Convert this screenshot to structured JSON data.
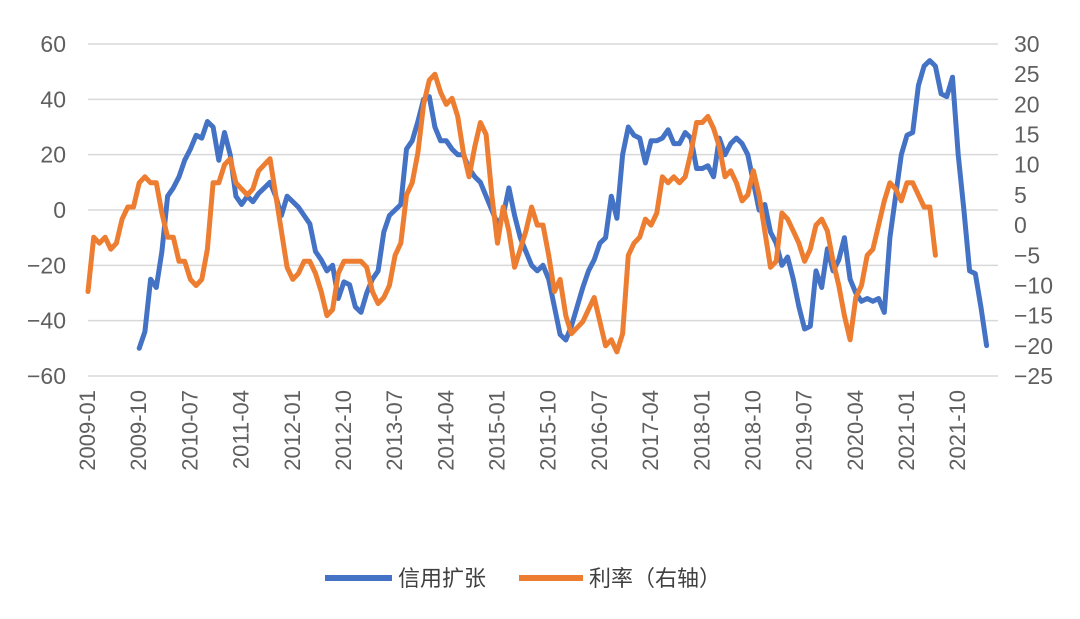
{
  "chart_data": {
    "type": "line",
    "title": "",
    "colors": {
      "credit": "#4472c4",
      "rate": "#ed7d31",
      "grid": "#d9d9d9"
    },
    "x_tick_labels": [
      "2009-01",
      "2009-10",
      "2010-07",
      "2011-04",
      "2012-01",
      "2012-10",
      "2013-07",
      "2014-04",
      "2015-01",
      "2015-10",
      "2016-07",
      "2017-04",
      "2018-01",
      "2018-10",
      "2019-07",
      "2020-04",
      "2021-01",
      "2021-10"
    ],
    "x_tick_positions": [
      0,
      9,
      18,
      27,
      36,
      45,
      54,
      63,
      72,
      81,
      90,
      99,
      108,
      117,
      126,
      135,
      144,
      153
    ],
    "x_range": [
      0,
      160
    ],
    "y_left": {
      "min": -60,
      "max": 60,
      "ticks": [
        60,
        40,
        20,
        0,
        -20,
        -40,
        -60
      ],
      "labels": [
        "60",
        "40",
        "20",
        "0",
        "−20",
        "−40",
        "−60"
      ]
    },
    "y_right": {
      "min": -25,
      "max": 30,
      "ticks": [
        30,
        25,
        20,
        15,
        10,
        5,
        0,
        -5,
        -10,
        -15,
        -20,
        -25
      ],
      "labels": [
        "30",
        "25",
        "20",
        "15",
        "10",
        "5",
        "0",
        "−5",
        "−10",
        "−15",
        "−20",
        "−25"
      ]
    },
    "series": [
      {
        "name": "信用扩张",
        "axis": "left",
        "x_start": 9,
        "values": [
          -50,
          -44,
          -25,
          -28,
          -15,
          5,
          8,
          12,
          18,
          22,
          27,
          26,
          32,
          30,
          18,
          28,
          20,
          5,
          2,
          5,
          3,
          6,
          8,
          10,
          5,
          -2,
          5,
          3,
          1,
          -2,
          -5,
          -15,
          -18,
          -22,
          -20,
          -32,
          -26,
          -27,
          -35,
          -37,
          -30,
          -25,
          -22,
          -8,
          -2,
          0,
          2,
          22,
          25,
          32,
          40,
          41,
          30,
          25,
          25,
          22,
          20,
          20,
          15,
          12,
          10,
          5,
          0,
          -5,
          -2,
          8,
          -2,
          -10,
          -15,
          -20,
          -22,
          -20,
          -25,
          -35,
          -45,
          -47,
          -42,
          -35,
          -28,
          -22,
          -18,
          -12,
          -10,
          5,
          -3,
          20,
          30,
          27,
          26,
          17,
          25,
          25,
          26,
          29,
          24,
          24,
          28,
          26,
          15,
          15,
          16,
          12,
          26,
          20,
          24,
          26,
          24,
          20,
          10,
          0,
          2,
          -8,
          -12,
          -20,
          -17,
          -25,
          -35,
          -43,
          -42,
          -22,
          -28,
          -14,
          -22,
          -18,
          -10,
          -25,
          -30,
          -33,
          -32,
          -33,
          -32,
          -37,
          -10,
          5,
          20,
          27,
          28,
          45,
          52,
          54,
          52,
          42,
          41,
          48,
          20,
          0,
          -22,
          -23,
          -35,
          -49
        ]
      },
      {
        "name": "利率（右轴）",
        "axis": "right",
        "x_start": 0,
        "values": [
          -11,
          -2,
          -3,
          -2,
          -4,
          -3,
          1,
          3,
          3,
          7,
          8,
          7,
          7,
          2,
          -2,
          -2,
          -6,
          -6,
          -9,
          -10,
          -9,
          -4,
          7,
          7,
          10,
          11,
          7,
          6,
          5,
          6,
          9,
          10,
          11,
          5,
          -1,
          -7,
          -9,
          -8,
          -6,
          -6,
          -8,
          -11,
          -15,
          -14,
          -8,
          -6,
          -6,
          -6,
          -6,
          -7,
          -11,
          -13,
          -12,
          -10,
          -5,
          -3,
          5,
          7,
          12,
          20,
          24,
          25,
          22,
          20,
          21,
          18,
          12,
          8,
          13,
          17,
          15,
          5,
          -3,
          3,
          -1,
          -7,
          -4,
          -1,
          3,
          0,
          0,
          -5,
          -11,
          -9,
          -15,
          -18,
          -17,
          -16,
          -14,
          -12,
          -16,
          -20,
          -19,
          -21,
          -18,
          -5,
          -3,
          -2,
          1,
          0,
          2,
          8,
          7,
          8,
          7,
          8,
          12,
          17,
          17,
          18,
          16,
          13,
          8,
          9,
          7,
          4,
          5,
          9,
          5,
          -1,
          -7,
          -6,
          2,
          1,
          -1,
          -3,
          -6,
          -4,
          0,
          1,
          -1,
          -6,
          -10,
          -15,
          -19,
          -12,
          -10,
          -5,
          -4,
          0,
          4,
          7,
          6,
          4,
          7,
          7,
          5,
          3,
          3,
          -5
        ]
      }
    ],
    "legend": [
      {
        "label": "信用扩张",
        "series": 0
      },
      {
        "label": "利率（右轴）",
        "series": 1
      }
    ]
  }
}
